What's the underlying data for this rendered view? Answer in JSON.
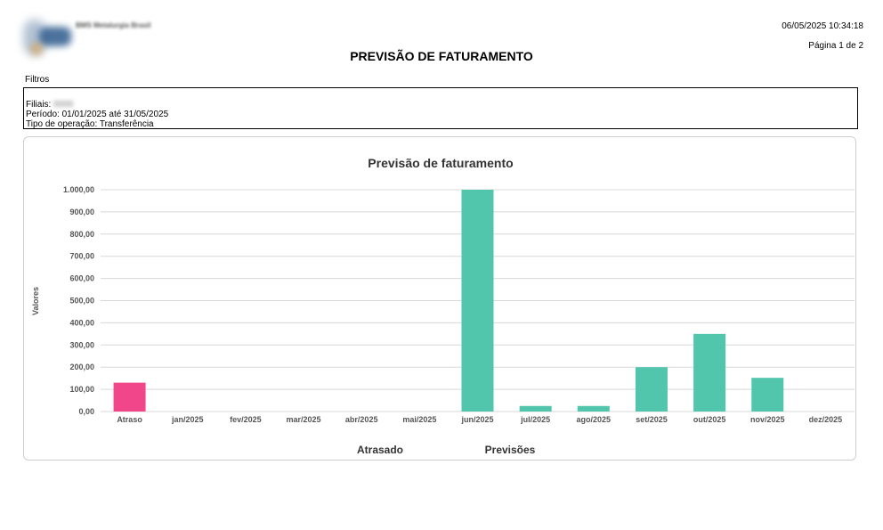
{
  "header": {
    "company": "BMS Metalurgia Brasil",
    "timestamp": "06/05/2025 10:34:18",
    "page": "Página 1 de 2",
    "title": "PREVISÃO DE FATURAMENTO"
  },
  "filters": {
    "label": "Filtros",
    "filiais_label": "Filiais:",
    "filiais_value": "0000",
    "periodo": "Período: 01/01/2025 até 31/05/2025",
    "tipo_operacao": "Tipo de operação: Transferência"
  },
  "colors": {
    "atrasado": "#f2468a",
    "previsoes": "#52c6ad",
    "grid": "#d8d8d8",
    "axis_text": "#555555"
  },
  "chart_data": {
    "type": "bar",
    "title": "Previsão de faturamento",
    "ylabel": "Valores",
    "xlabel": "",
    "ylim": [
      0,
      1000
    ],
    "y_ticks": [
      "0,00",
      "100,00",
      "200,00",
      "300,00",
      "400,00",
      "500,00",
      "600,00",
      "700,00",
      "800,00",
      "900,00",
      "1.000,00"
    ],
    "categories": [
      "Atraso",
      "jan/2025",
      "fev/2025",
      "mar/2025",
      "abr/2025",
      "mai/2025",
      "jun/2025",
      "jul/2025",
      "ago/2025",
      "set/2025",
      "out/2025",
      "nov/2025",
      "dez/2025"
    ],
    "series": [
      {
        "name": "Atrasado",
        "color": "#f2468a",
        "values": [
          130,
          0,
          0,
          0,
          0,
          0,
          0,
          0,
          0,
          0,
          0,
          0,
          0
        ]
      },
      {
        "name": "Previsões",
        "color": "#52c6ad",
        "values": [
          0,
          0,
          0,
          0,
          0,
          0,
          1000,
          25,
          25,
          200,
          350,
          152,
          0
        ]
      }
    ],
    "grid": true,
    "legend_position": "bottom"
  }
}
